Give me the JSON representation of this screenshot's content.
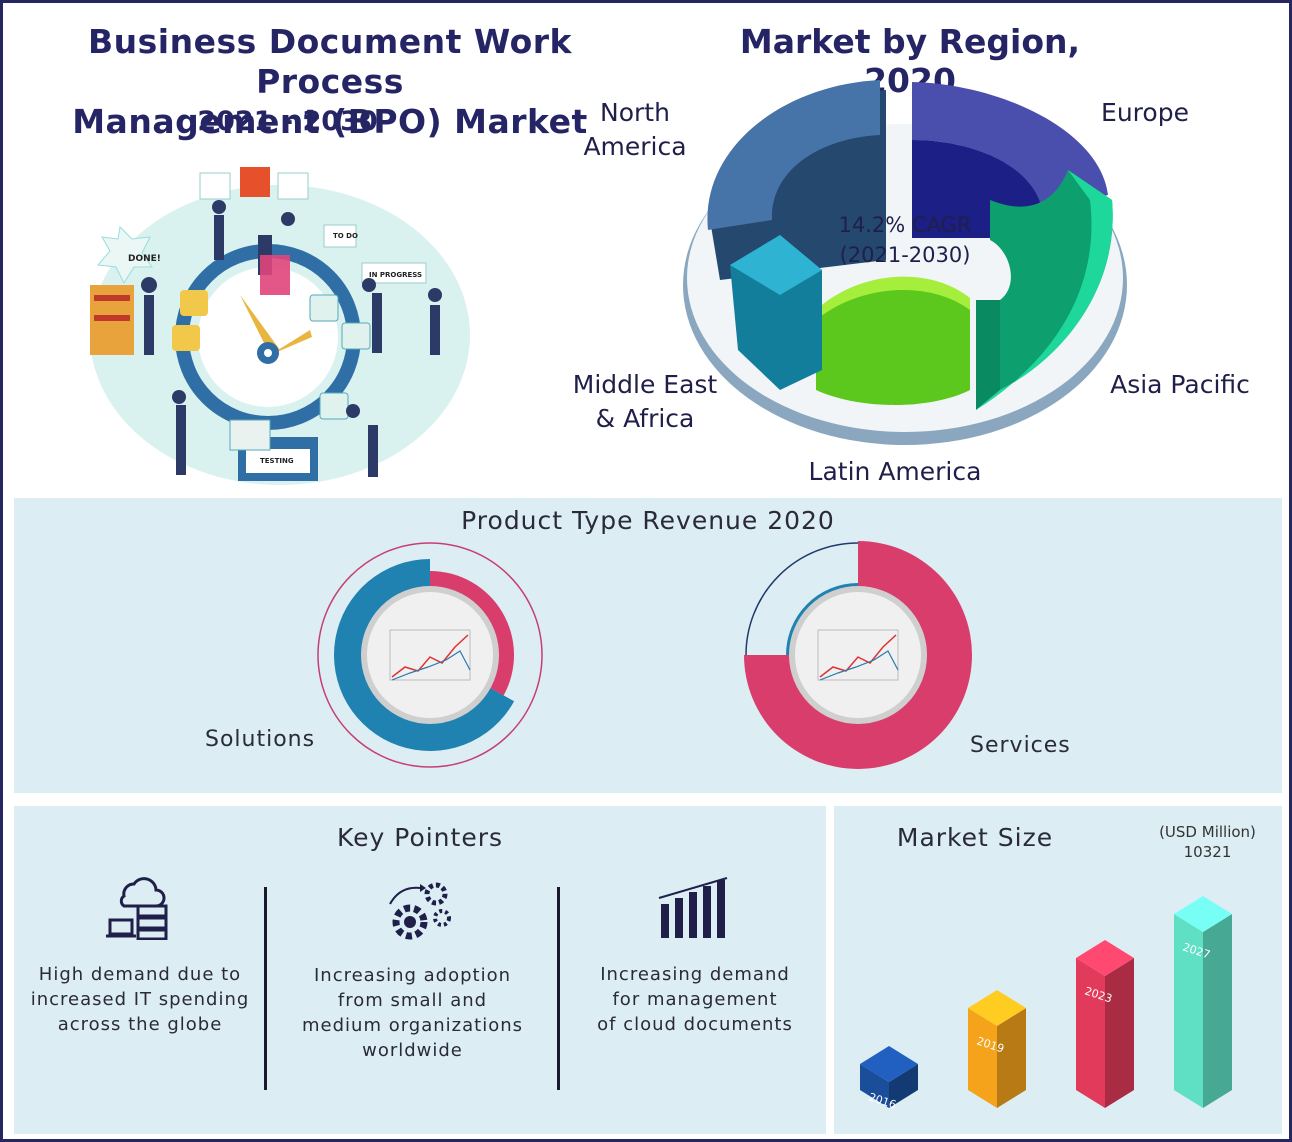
{
  "header": {
    "title_line1": "Business Document Work Process",
    "title_line2": "Management (BPO) Market",
    "years": "2021 - 2030"
  },
  "illustration": {
    "labels": [
      "DONE!",
      "TO DO",
      "IN PROGRESS",
      "TESTING"
    ]
  },
  "region_chart": {
    "title": "Market by Region, 2020",
    "cagr_line1": "14.2% CAGR",
    "cagr_line2": "(2021-2030)",
    "labels": {
      "north_america_1": "North",
      "north_america_2": "America",
      "europe": "Europe",
      "asia_pacific": "Asia Pacific",
      "latin_america": "Latin America",
      "mea_1": "Middle East",
      "mea_2": "& Africa"
    },
    "colors": {
      "north_america": "#3f6e9e",
      "europe": "#2a2f9c",
      "asia_pacific": "#12c48f",
      "latin_america": "#7ed321",
      "mea": "#1aa0c0"
    }
  },
  "product_type": {
    "title": "Product Type Revenue 2020",
    "solutions_label": "Solutions",
    "services_label": "Services",
    "colors": {
      "blue": "#1f82b0",
      "pink": "#d93d6c"
    }
  },
  "key_pointers": {
    "title": "Key Pointers",
    "items": [
      {
        "icon": "cloud-server-icon",
        "line1": "High demand due to",
        "line2": "increased IT spending",
        "line3": "across the globe",
        "line4": ""
      },
      {
        "icon": "gears-icon",
        "line1": "Increasing adoption",
        "line2": "from small and",
        "line3": "medium organizations",
        "line4": "worldwide"
      },
      {
        "icon": "bar-chart-icon",
        "line1": "Increasing demand",
        "line2": "for management",
        "line3": "of cloud documents",
        "line4": ""
      }
    ]
  },
  "market_size": {
    "title": "Market Size",
    "unit": "(USD Million)",
    "value_label": "10321"
  },
  "chart_data": [
    {
      "type": "pie",
      "title": "Market by Region, 2020",
      "categories": [
        "North America",
        "Europe",
        "Asia Pacific",
        "Latin America",
        "Middle East & Africa"
      ]
    },
    {
      "type": "pie",
      "title": "Product Type Revenue 2020",
      "categories": [
        "Solutions",
        "Services"
      ],
      "charts": [
        {
          "name": "Solutions",
          "values": [
            0.67,
            0.33
          ]
        },
        {
          "name": "Services",
          "values": [
            0.25,
            0.75
          ]
        }
      ]
    },
    {
      "type": "bar",
      "title": "Market Size",
      "ylabel": "(USD Million)",
      "categories": [
        "2016",
        "2019",
        "2023",
        "2027"
      ],
      "values": [
        null,
        null,
        null,
        10321
      ],
      "colors": [
        "#1a4d9a",
        "#f4a31a",
        "#e23a5a",
        "#5fe0c4"
      ]
    }
  ]
}
